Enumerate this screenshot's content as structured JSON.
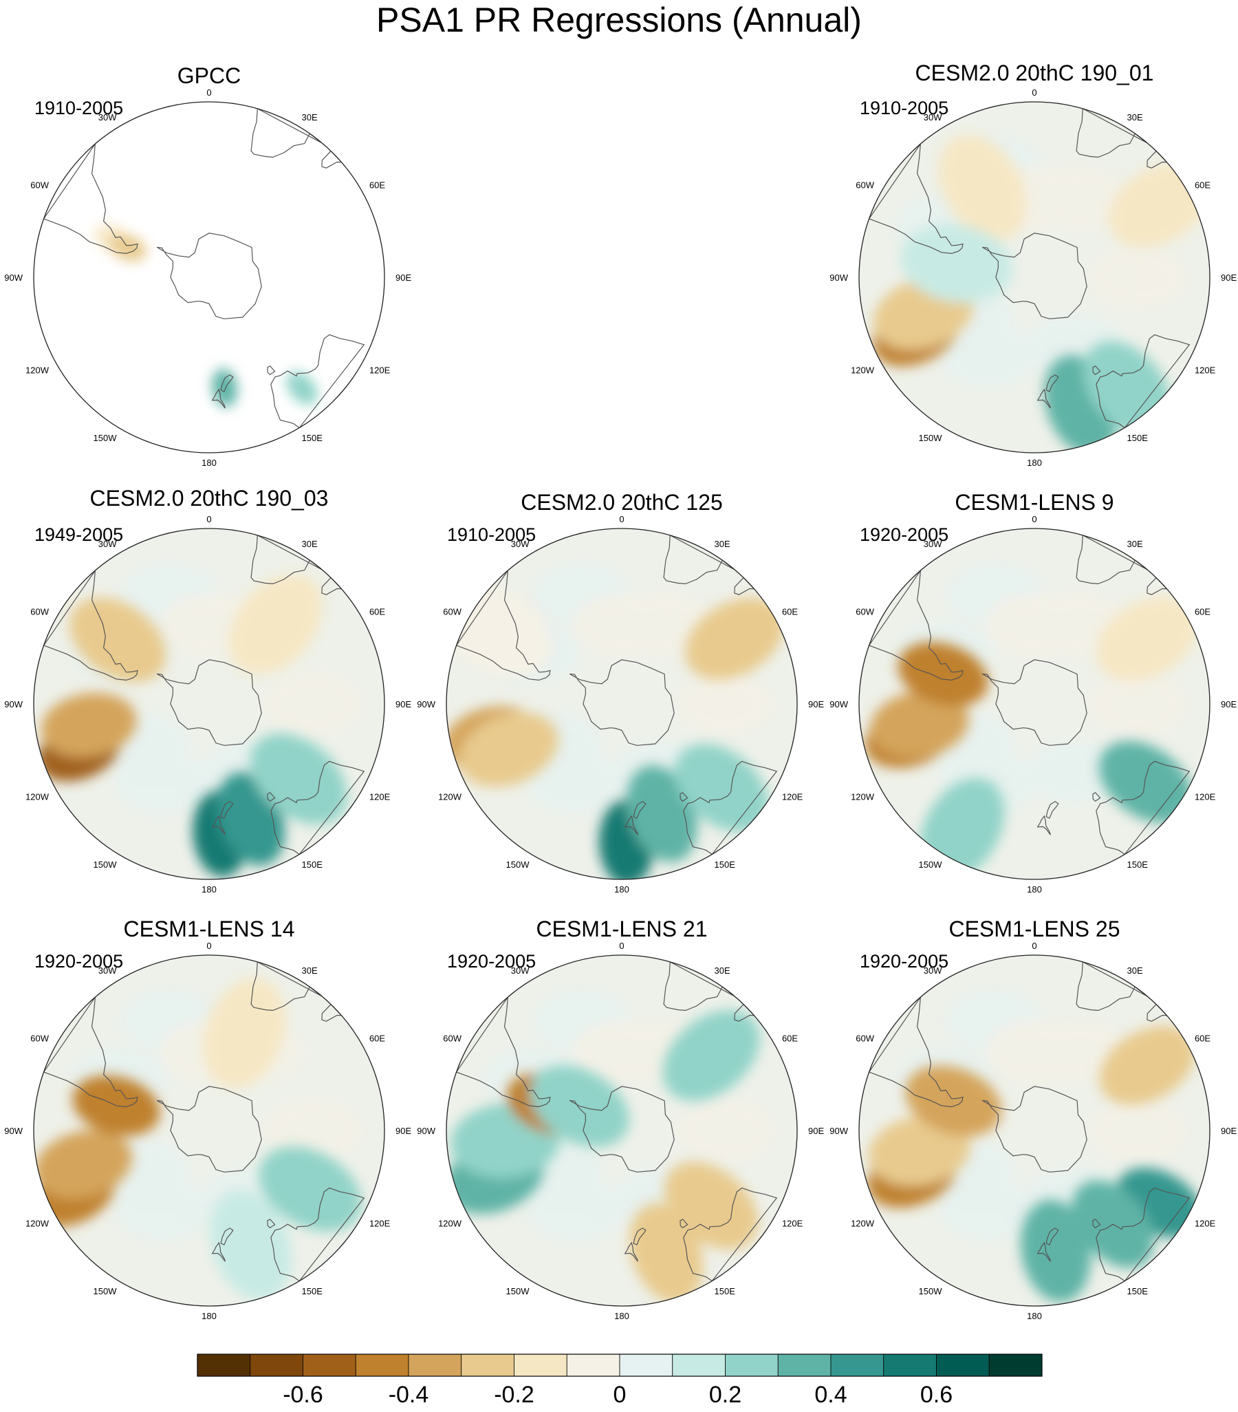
{
  "title": "PSA1 PR Regressions (Annual)",
  "panels": [
    {
      "name": "GPCC",
      "period": "1910-2005",
      "land_only": true,
      "anomalies": [
        {
          "lon": -68,
          "lat": -45,
          "value": -0.2
        },
        {
          "lon": -70,
          "lat": -52,
          "value": -0.3
        },
        {
          "lon": 140,
          "lat": -30,
          "value": 0.2
        },
        {
          "lon": 172,
          "lat": -42,
          "value": 0.3
        }
      ]
    },
    {
      "name": "CESM2.0 20thC 190_01",
      "period": "1910-2005",
      "anomalies": [
        {
          "lon": -115,
          "lat": -35,
          "value": -0.45
        },
        {
          "lon": -108,
          "lat": -40,
          "value": -0.3
        },
        {
          "lon": 160,
          "lat": -33,
          "value": 0.3
        },
        {
          "lon": 140,
          "lat": -30,
          "value": 0.25
        },
        {
          "lon": 60,
          "lat": -30,
          "value": -0.2
        },
        {
          "lon": -30,
          "lat": -45,
          "value": -0.15
        },
        {
          "lon": -80,
          "lat": -55,
          "value": 0.15
        }
      ]
    },
    {
      "name": "CESM2.0 20thC 190_03",
      "period": "1949-2005",
      "anomalies": [
        {
          "lon": -110,
          "lat": -32,
          "value": -0.55
        },
        {
          "lon": -100,
          "lat": -38,
          "value": -0.4
        },
        {
          "lon": 175,
          "lat": -35,
          "value": 0.55
        },
        {
          "lon": 160,
          "lat": -38,
          "value": 0.4
        },
        {
          "lon": 130,
          "lat": -40,
          "value": 0.2
        },
        {
          "lon": -55,
          "lat": -42,
          "value": -0.25
        },
        {
          "lon": 40,
          "lat": -45,
          "value": -0.15
        }
      ]
    },
    {
      "name": "CESM2.0 20thC 125",
      "period": "1910-2005",
      "anomalies": [
        {
          "lon": -105,
          "lat": -33,
          "value": -0.4
        },
        {
          "lon": -112,
          "lat": -38,
          "value": -0.3
        },
        {
          "lon": 178,
          "lat": -32,
          "value": 0.55
        },
        {
          "lon": 160,
          "lat": -40,
          "value": 0.35
        },
        {
          "lon": 130,
          "lat": -35,
          "value": 0.25
        },
        {
          "lon": 60,
          "lat": -35,
          "value": -0.25
        },
        {
          "lon": -60,
          "lat": -30,
          "value": -0.1
        }
      ]
    },
    {
      "name": "CESM1-LENS 9",
      "period": "1920-2005",
      "anomalies": [
        {
          "lon": -105,
          "lat": -35,
          "value": -0.5
        },
        {
          "lon": -100,
          "lat": -40,
          "value": -0.35
        },
        {
          "lon": 125,
          "lat": -33,
          "value": 0.3
        },
        {
          "lon": -150,
          "lat": -30,
          "value": 0.2
        },
        {
          "lon": 60,
          "lat": -35,
          "value": -0.2
        },
        {
          "lon": -72,
          "lat": -48,
          "value": -0.45
        }
      ]
    },
    {
      "name": "CESM1-LENS 14",
      "period": "1920-2005",
      "anomalies": [
        {
          "lon": -115,
          "lat": -28,
          "value": -0.5
        },
        {
          "lon": -105,
          "lat": -35,
          "value": -0.35
        },
        {
          "lon": -75,
          "lat": -48,
          "value": -0.5
        },
        {
          "lon": 120,
          "lat": -40,
          "value": 0.2
        },
        {
          "lon": 160,
          "lat": -38,
          "value": 0.15
        },
        {
          "lon": 20,
          "lat": -45,
          "value": -0.15
        }
      ]
    },
    {
      "name": "CESM1-LENS 21",
      "period": "1920-2005",
      "anomalies": [
        {
          "lon": -110,
          "lat": -33,
          "value": 0.3
        },
        {
          "lon": -95,
          "lat": -40,
          "value": 0.2
        },
        {
          "lon": 160,
          "lat": -35,
          "value": -0.3
        },
        {
          "lon": 130,
          "lat": -40,
          "value": -0.25
        },
        {
          "lon": -70,
          "lat": -56,
          "value": -0.5
        },
        {
          "lon": 50,
          "lat": -40,
          "value": 0.2
        },
        {
          "lon": -60,
          "lat": -68,
          "value": 0.25
        }
      ]
    },
    {
      "name": "CESM1-LENS 25",
      "period": "1920-2005",
      "anomalies": [
        {
          "lon": -110,
          "lat": -35,
          "value": -0.45
        },
        {
          "lon": -100,
          "lat": -40,
          "value": -0.3
        },
        {
          "lon": 120,
          "lat": -30,
          "value": 0.45
        },
        {
          "lon": 140,
          "lat": -38,
          "value": 0.35
        },
        {
          "lon": 170,
          "lat": -38,
          "value": 0.3
        },
        {
          "lon": 60,
          "lat": -35,
          "value": -0.3
        },
        {
          "lon": -70,
          "lat": -52,
          "value": -0.35
        }
      ]
    }
  ],
  "map": {
    "projection": "south-polar stereographic",
    "lon_labels": [
      "0",
      "30E",
      "60E",
      "90E",
      "120E",
      "150E",
      "180",
      "150W",
      "120W",
      "90W",
      "60W",
      "30W"
    ],
    "outer_latitude": -20
  },
  "colorbar": {
    "colors": [
      "#543005",
      "#7f470b",
      "#a0601a",
      "#bf812d",
      "#d4a45c",
      "#e8ca8e",
      "#f6e7c4",
      "#f5f1e6",
      "#e5f2f1",
      "#c8eae4",
      "#91d3c8",
      "#5eb3a6",
      "#35978f",
      "#157a72",
      "#015c53",
      "#003c30"
    ],
    "tick_labels": [
      "-0.6",
      "-0.4",
      "-0.2",
      "0",
      "0.2",
      "0.4",
      "0.6"
    ],
    "tick_values": [
      -0.6,
      -0.4,
      -0.2,
      0,
      0.2,
      0.4,
      0.6
    ],
    "bounds": [
      -0.7,
      -0.6,
      -0.5,
      -0.4,
      -0.3,
      -0.2,
      -0.1,
      0,
      0.1,
      0.2,
      0.3,
      0.4,
      0.5,
      0.6,
      0.7
    ]
  }
}
